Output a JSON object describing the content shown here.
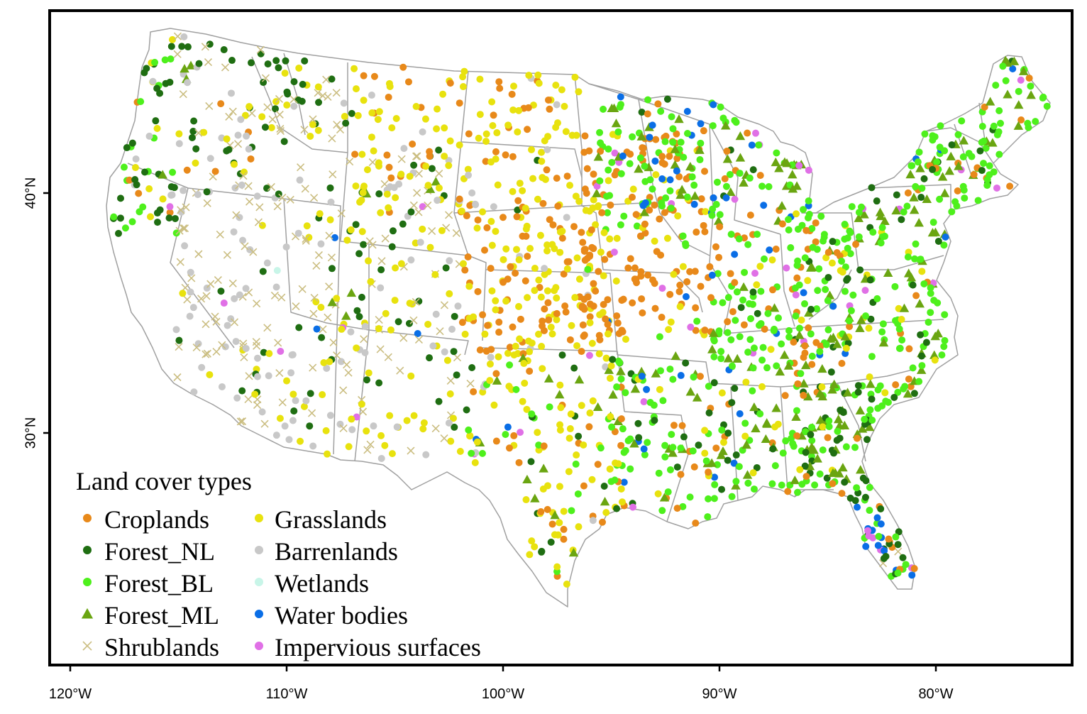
{
  "legend": {
    "title": "Land cover types",
    "items": [
      {
        "key": "croplands",
        "label": "Croplands",
        "color": "#e8891a",
        "symbol": "circle"
      },
      {
        "key": "forest_nl",
        "label": "Forest_NL",
        "color": "#1f6e12",
        "symbol": "circle"
      },
      {
        "key": "forest_bl",
        "label": "Forest_BL",
        "color": "#4ef01c",
        "symbol": "circle"
      },
      {
        "key": "forest_ml",
        "label": "Forest_ML",
        "color": "#6aa511",
        "symbol": "triangle"
      },
      {
        "key": "shrublands",
        "label": "Shrublands",
        "color": "#cbbe82",
        "symbol": "cross"
      },
      {
        "key": "grasslands",
        "label": "Grasslands",
        "color": "#e8e20e",
        "symbol": "circle"
      },
      {
        "key": "barrenlands",
        "label": "Barrenlands",
        "color": "#c8c8c8",
        "symbol": "circle"
      },
      {
        "key": "wetlands",
        "label": "Wetlands",
        "color": "#c8f5e8",
        "symbol": "circle"
      },
      {
        "key": "water_bodies",
        "label": "Water bodies",
        "color": "#0a6ee6",
        "symbol": "circle"
      },
      {
        "key": "impervious",
        "label": "Impervious surfaces",
        "color": "#e070e6",
        "symbol": "circle"
      }
    ]
  },
  "axes": {
    "x_ticks": [
      {
        "value": -120,
        "label": "120°W"
      },
      {
        "value": -110,
        "label": "110°W"
      },
      {
        "value": -100,
        "label": "100°W"
      },
      {
        "value": -90,
        "label": "90°W"
      },
      {
        "value": -80,
        "label": "80°W"
      }
    ],
    "y_ticks": [
      {
        "value": 40,
        "label": "40°N"
      },
      {
        "value": 30,
        "label": "30°N"
      }
    ]
  },
  "map": {
    "border_color": "#a0a0a0",
    "frame_color": "#000000"
  }
}
